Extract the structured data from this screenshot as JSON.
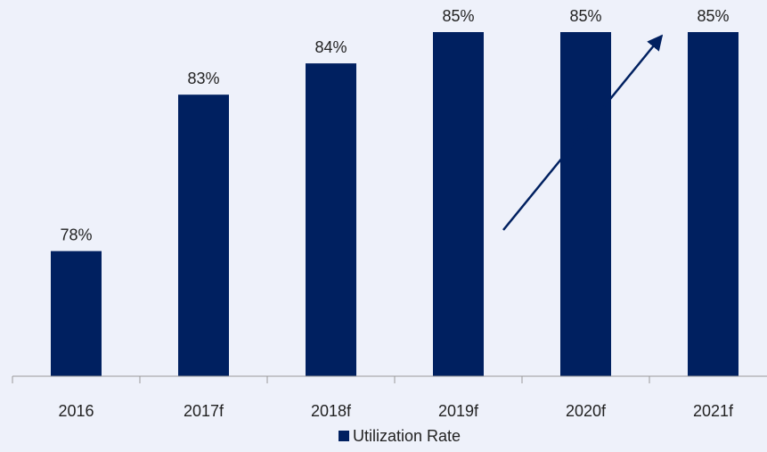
{
  "chart_data": {
    "type": "bar",
    "categories": [
      "2016",
      "2017f",
      "2018f",
      "2019f",
      "2020f",
      "2021f"
    ],
    "series": [
      {
        "name": "Utilization Rate",
        "color": "#002060",
        "values": [
          78,
          83,
          84,
          85,
          85,
          85
        ],
        "value_labels": [
          "78%",
          "83%",
          "84%",
          "85%",
          "85%",
          "85%"
        ]
      }
    ],
    "ylim": [
      74,
      85
    ],
    "legend": "bottom"
  }
}
